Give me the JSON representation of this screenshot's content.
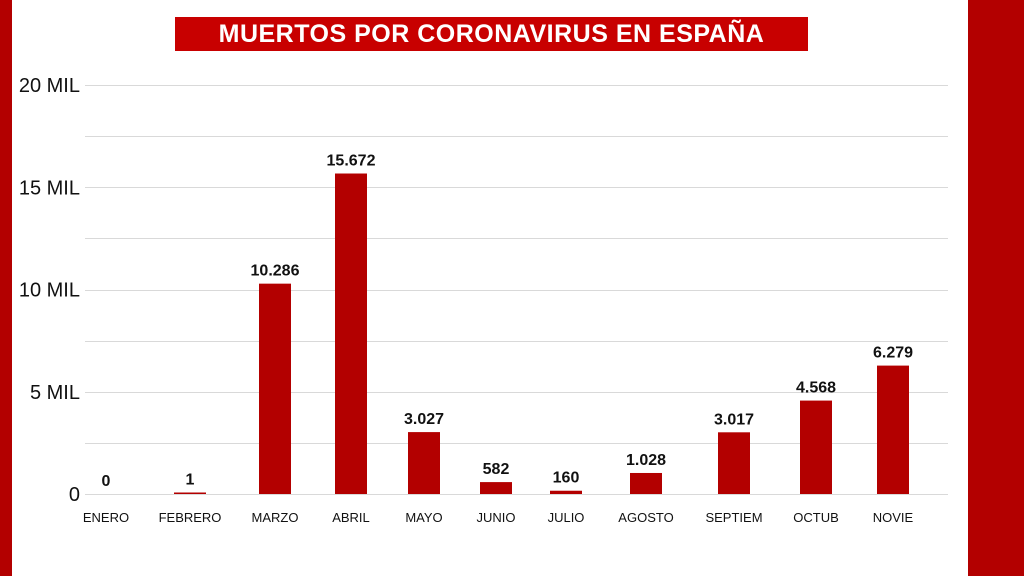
{
  "colors": {
    "background": "#ffffff",
    "frame": "#b30000",
    "title_bg": "#c80000",
    "bar": "#b30000",
    "grid": "#d9d9d9"
  },
  "chart_data": {
    "type": "bar",
    "title": "MUERTOS POR CORONAVIRUS EN ESPAÑA",
    "xlabel": "",
    "ylabel": "",
    "categories": [
      "ENERO",
      "FEBRERO",
      "MARZO",
      "ABRIL",
      "MAYO",
      "JUNIO",
      "JULIO",
      "AGOSTO",
      "SEPTIEM",
      "OCTUB",
      "NOVIE"
    ],
    "values": [
      0,
      1,
      10286,
      15672,
      3027,
      582,
      160,
      1028,
      3017,
      4568,
      6279
    ],
    "value_labels": [
      "0",
      "1",
      "10.286",
      "15.672",
      "3.027",
      "582",
      "160",
      "1.028",
      "3.017",
      "4.568",
      "6.279"
    ],
    "ylim": [
      0,
      20000
    ],
    "y_ticks": [
      0,
      5000,
      10000,
      15000,
      20000
    ],
    "y_tick_labels": [
      "0",
      "5 MIL",
      "10 MIL",
      "15 MIL",
      "20 MIL"
    ],
    "grid": true,
    "legend": "none"
  }
}
